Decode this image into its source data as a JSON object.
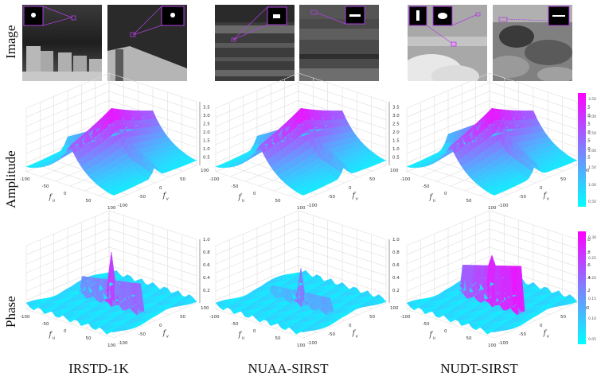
{
  "row_labels": {
    "image": "Image",
    "amplitude": "Amplitude",
    "phase": "Phase"
  },
  "datasets": [
    {
      "name": "IRSTD-1K"
    },
    {
      "name": "NUAA-SIRST"
    },
    {
      "name": "NUDT-SIRST"
    }
  ],
  "axes": {
    "x_label": "f",
    "x_sub": "u",
    "y_label": "f",
    "y_sub": "v",
    "x_ticks": [
      "-100",
      "-50",
      "0",
      "50",
      "100"
    ],
    "y_ticks": [
      "-100",
      "-50",
      "0",
      "50",
      "100"
    ],
    "amplitude_z_ticks": [
      "0.5",
      "1.0",
      "1.5",
      "2.0",
      "2.5",
      "3.0",
      "3.5"
    ],
    "phase_z_ticks": [
      "0.2",
      "0.4",
      "0.6",
      "0.8",
      "1.0"
    ]
  },
  "colorbars": {
    "amplitude": [
      "3.50",
      "3.00",
      "2.50",
      "2.00",
      "1.50",
      "1.00",
      "0.50"
    ],
    "phase": [
      "0.30",
      "0.25",
      "0.20",
      "0.15",
      "0.10",
      "0.05"
    ]
  },
  "colors": {
    "low": "#00ffff",
    "high": "#ff00ff",
    "highlight_box": "#b040e0"
  },
  "chart_data": [
    {
      "type": "surface",
      "title": "IRSTD-1K Amplitude",
      "xlabel": "f_u",
      "ylabel": "f_v",
      "zlabel": "Amplitude",
      "xlim": [
        -128,
        128
      ],
      "ylim": [
        -128,
        128
      ],
      "zlim": [
        0,
        3.8
      ],
      "peak": 3.6,
      "plateau": 2.6,
      "base": 0.3
    },
    {
      "type": "surface",
      "title": "NUAA-SIRST Amplitude",
      "xlabel": "f_u",
      "ylabel": "f_v",
      "zlabel": "Amplitude",
      "xlim": [
        -128,
        128
      ],
      "ylim": [
        -128,
        128
      ],
      "zlim": [
        0,
        3.8
      ],
      "peak": 3.6,
      "plateau": 2.7,
      "base": 0.3
    },
    {
      "type": "surface",
      "title": "NUDT-SIRST Amplitude",
      "xlabel": "f_u",
      "ylabel": "f_v",
      "zlabel": "Amplitude",
      "xlim": [
        -128,
        128
      ],
      "ylim": [
        -128,
        128
      ],
      "zlim": [
        0,
        3.8
      ],
      "peak": 3.6,
      "plateau": 3.0,
      "base": 0.3
    },
    {
      "type": "surface",
      "title": "IRSTD-1K Phase",
      "xlabel": "f_u",
      "ylabel": "f_v",
      "zlabel": "Phase",
      "xlim": [
        -128,
        128
      ],
      "ylim": [
        -128,
        128
      ],
      "zlim": [
        0,
        1.0
      ],
      "ridge": 0.45,
      "spike": 0.85,
      "noise": 0.1
    },
    {
      "type": "surface",
      "title": "NUAA-SIRST Phase",
      "xlabel": "f_u",
      "ylabel": "f_v",
      "zlabel": "Phase",
      "xlim": [
        -128,
        128
      ],
      "ylim": [
        -128,
        128
      ],
      "zlim": [
        0,
        1.0
      ],
      "ridge": 0.25,
      "spike": 0.6,
      "noise": 0.1
    },
    {
      "type": "surface",
      "title": "NUDT-SIRST Phase",
      "xlabel": "f_u",
      "ylabel": "f_v",
      "zlabel": "Phase",
      "xlim": [
        -128,
        128
      ],
      "ylim": [
        -128,
        128
      ],
      "zlim": [
        0,
        1.0
      ],
      "ridge": 0.7,
      "spike": 0.8,
      "noise": 0.1
    }
  ]
}
